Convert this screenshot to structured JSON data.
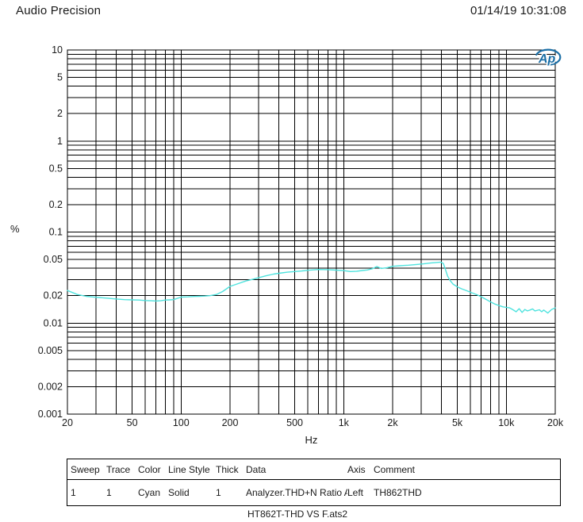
{
  "header": {
    "app_title": "Audio Precision",
    "timestamp": "01/14/19 10:31:08"
  },
  "logo": {
    "text": "Ap",
    "color": "#1c6fa6"
  },
  "chart_data": {
    "type": "line",
    "title": "",
    "xlabel": "Hz",
    "ylabel": "%",
    "x_scale": "log",
    "y_scale": "log",
    "xlim": [
      20,
      20000
    ],
    "ylim": [
      0.001,
      10
    ],
    "grid": "all log minor gridlines, black, full plot area",
    "legend_position": "table below plot",
    "x_ticks": [
      {
        "value": 20,
        "label": "20"
      },
      {
        "value": 50,
        "label": "50"
      },
      {
        "value": 100,
        "label": "100"
      },
      {
        "value": 200,
        "label": "200"
      },
      {
        "value": 500,
        "label": "500"
      },
      {
        "value": 1000,
        "label": "1k"
      },
      {
        "value": 2000,
        "label": "2k"
      },
      {
        "value": 5000,
        "label": "5k"
      },
      {
        "value": 10000,
        "label": "10k"
      },
      {
        "value": 20000,
        "label": "20k"
      }
    ],
    "y_ticks": [
      {
        "value": 10,
        "label": "10"
      },
      {
        "value": 5,
        "label": "5"
      },
      {
        "value": 2,
        "label": "2"
      },
      {
        "value": 1,
        "label": "1"
      },
      {
        "value": 0.5,
        "label": "0.5"
      },
      {
        "value": 0.2,
        "label": "0.2"
      },
      {
        "value": 0.1,
        "label": "0.1"
      },
      {
        "value": 0.05,
        "label": "0.05"
      },
      {
        "value": 0.02,
        "label": "0.02"
      },
      {
        "value": 0.01,
        "label": "0.01"
      },
      {
        "value": 0.005,
        "label": "0.005"
      },
      {
        "value": 0.002,
        "label": "0.002"
      },
      {
        "value": 0.001,
        "label": "0.001"
      }
    ],
    "series": [
      {
        "name": "Analyzer.THD+N Ratio A",
        "color": "#4fe3de",
        "points": [
          [
            20,
            0.0228
          ],
          [
            23,
            0.0206
          ],
          [
            26,
            0.0197
          ],
          [
            30,
            0.0192
          ],
          [
            35,
            0.0188
          ],
          [
            40,
            0.0184
          ],
          [
            45,
            0.0181
          ],
          [
            50,
            0.018
          ],
          [
            55,
            0.0179
          ],
          [
            60,
            0.0177
          ],
          [
            65,
            0.0176
          ],
          [
            70,
            0.0175
          ],
          [
            75,
            0.0176
          ],
          [
            80,
            0.0179
          ],
          [
            85,
            0.018
          ],
          [
            90,
            0.0181
          ],
          [
            100,
            0.0193
          ],
          [
            110,
            0.0194
          ],
          [
            120,
            0.0196
          ],
          [
            130,
            0.0197
          ],
          [
            140,
            0.0198
          ],
          [
            150,
            0.02
          ],
          [
            165,
            0.0206
          ],
          [
            180,
            0.0222
          ],
          [
            200,
            0.0253
          ],
          [
            220,
            0.0268
          ],
          [
            250,
            0.029
          ],
          [
            280,
            0.0305
          ],
          [
            300,
            0.0315
          ],
          [
            330,
            0.033
          ],
          [
            370,
            0.0345
          ],
          [
            400,
            0.0352
          ],
          [
            450,
            0.0362
          ],
          [
            500,
            0.0368
          ],
          [
            550,
            0.0373
          ],
          [
            600,
            0.038
          ],
          [
            700,
            0.0388
          ],
          [
            800,
            0.0386
          ],
          [
            900,
            0.0382
          ],
          [
            1000,
            0.0377
          ],
          [
            1100,
            0.0368
          ],
          [
            1200,
            0.0371
          ],
          [
            1300,
            0.0378
          ],
          [
            1400,
            0.0383
          ],
          [
            1500,
            0.0396
          ],
          [
            1600,
            0.0418
          ],
          [
            1700,
            0.0398
          ],
          [
            1850,
            0.0406
          ],
          [
            2000,
            0.042
          ],
          [
            2200,
            0.0426
          ],
          [
            2500,
            0.0432
          ],
          [
            2800,
            0.044
          ],
          [
            3100,
            0.0447
          ],
          [
            3400,
            0.0456
          ],
          [
            3700,
            0.0463
          ],
          [
            3950,
            0.0467
          ],
          [
            4100,
            0.0452
          ],
          [
            4200,
            0.04
          ],
          [
            4350,
            0.033
          ],
          [
            4500,
            0.0295
          ],
          [
            4700,
            0.0268
          ],
          [
            5000,
            0.025
          ],
          [
            5300,
            0.0238
          ],
          [
            5700,
            0.0227
          ],
          [
            6100,
            0.0216
          ],
          [
            6600,
            0.0205
          ],
          [
            7000,
            0.0195
          ],
          [
            7500,
            0.0182
          ],
          [
            8000,
            0.0171
          ],
          [
            8500,
            0.0162
          ],
          [
            9000,
            0.0156
          ],
          [
            9500,
            0.0151
          ],
          [
            10000,
            0.0149
          ],
          [
            10500,
            0.0147
          ],
          [
            11000,
            0.014
          ],
          [
            11500,
            0.0133
          ],
          [
            12000,
            0.0144
          ],
          [
            12500,
            0.0131
          ],
          [
            13000,
            0.0141
          ],
          [
            13500,
            0.0136
          ],
          [
            14000,
            0.0139
          ],
          [
            14500,
            0.0143
          ],
          [
            15000,
            0.0136
          ],
          [
            16000,
            0.014
          ],
          [
            16500,
            0.0133
          ],
          [
            17000,
            0.0139
          ],
          [
            18000,
            0.0129
          ],
          [
            19000,
            0.0141
          ],
          [
            20000,
            0.0147
          ]
        ]
      }
    ]
  },
  "legend_table": {
    "headers": [
      "Sweep",
      "Trace",
      "Color",
      "Line Style",
      "Thick",
      "Data",
      "Axis",
      "Comment"
    ],
    "rows": [
      [
        "1",
        "1",
        "Cyan",
        "Solid",
        "1",
        "Analyzer.THD+N Ratio A",
        "Left",
        "TH862THD"
      ]
    ]
  },
  "caption": "HT862T-THD VS F.ats2"
}
